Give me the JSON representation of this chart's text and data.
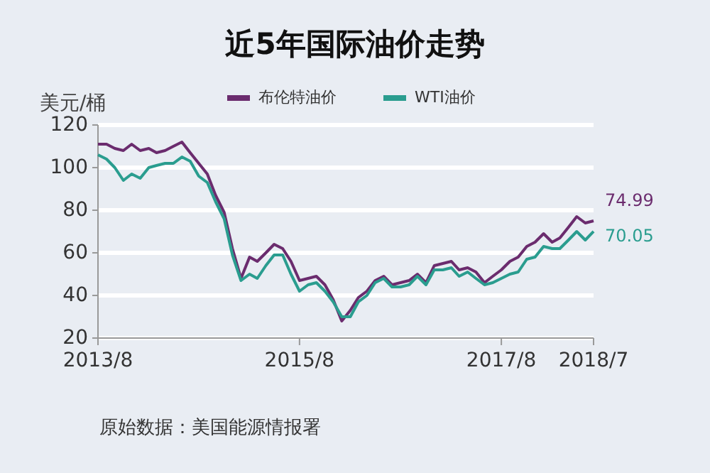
{
  "chart_data": {
    "type": "line",
    "title": "近5年国际油价走势",
    "ylabel": "美元/桶",
    "x": [
      "2013-08",
      "2013-09",
      "2013-10",
      "2013-11",
      "2013-12",
      "2014-01",
      "2014-02",
      "2014-03",
      "2014-04",
      "2014-05",
      "2014-06",
      "2014-07",
      "2014-08",
      "2014-09",
      "2014-10",
      "2014-11",
      "2014-12",
      "2015-01",
      "2015-02",
      "2015-03",
      "2015-04",
      "2015-05",
      "2015-06",
      "2015-07",
      "2015-08",
      "2015-09",
      "2015-10",
      "2015-11",
      "2015-12",
      "2016-01",
      "2016-02",
      "2016-03",
      "2016-04",
      "2016-05",
      "2016-06",
      "2016-07",
      "2016-08",
      "2016-09",
      "2016-10",
      "2016-11",
      "2016-12",
      "2017-01",
      "2017-02",
      "2017-03",
      "2017-04",
      "2017-05",
      "2017-06",
      "2017-07",
      "2017-08",
      "2017-09",
      "2017-10",
      "2017-11",
      "2017-12",
      "2018-01",
      "2018-02",
      "2018-03",
      "2018-04",
      "2018-05",
      "2018-06",
      "2018-07"
    ],
    "series": [
      {
        "name": "布伦特油价",
        "color": "#6b2c6e",
        "values": [
          111,
          111,
          109,
          108,
          111,
          108,
          109,
          107,
          108,
          110,
          112,
          107,
          102,
          97,
          87,
          79,
          62,
          48,
          58,
          56,
          60,
          64,
          62,
          56,
          47,
          48,
          49,
          45,
          38,
          28,
          33,
          39,
          42,
          47,
          49,
          45,
          46,
          47,
          50,
          46,
          54,
          55,
          56,
          52,
          53,
          51,
          46,
          49,
          52,
          56,
          58,
          63,
          65,
          69,
          65,
          67,
          72,
          77,
          74,
          74.99
        ],
        "value_labels": [
          null,
          null,
          null,
          null,
          null,
          null,
          null,
          null,
          null,
          null,
          null,
          null,
          null,
          null,
          null,
          null,
          null,
          null,
          null,
          null,
          null,
          null,
          null,
          null,
          null,
          null,
          null,
          null,
          null,
          null,
          null,
          null,
          null,
          null,
          null,
          null,
          null,
          null,
          null,
          null,
          null,
          null,
          null,
          null,
          null,
          null,
          null,
          null,
          null,
          null,
          null,
          null,
          null,
          null,
          null,
          null,
          null,
          null,
          null,
          "74.99"
        ]
      },
      {
        "name": "WTI油价",
        "color": "#2a9d8f",
        "values": [
          106,
          104,
          100,
          94,
          97,
          95,
          100,
          101,
          102,
          102,
          105,
          103,
          96,
          93,
          84,
          76,
          59,
          47,
          50,
          48,
          54,
          59,
          59,
          50,
          42,
          45,
          46,
          42,
          37,
          30,
          30,
          37,
          40,
          46,
          48,
          44,
          44,
          45,
          49,
          45,
          52,
          52,
          53,
          49,
          51,
          48,
          45,
          46,
          48,
          50,
          51,
          57,
          58,
          63,
          62,
          62,
          66,
          70,
          66,
          70.05
        ],
        "value_labels": [
          null,
          null,
          null,
          null,
          null,
          null,
          null,
          null,
          null,
          null,
          null,
          null,
          null,
          null,
          null,
          null,
          null,
          null,
          null,
          null,
          null,
          null,
          null,
          null,
          null,
          null,
          null,
          null,
          null,
          null,
          null,
          null,
          null,
          null,
          null,
          null,
          null,
          null,
          null,
          null,
          null,
          null,
          null,
          null,
          null,
          null,
          null,
          null,
          null,
          null,
          null,
          null,
          null,
          null,
          null,
          null,
          null,
          null,
          null,
          "70.05"
        ]
      }
    ],
    "xlim": [
      "2013-08",
      "2018-07"
    ],
    "xticks": [
      {
        "value": "2013-08",
        "label": "2013/8"
      },
      {
        "value": "2015-08",
        "label": "2015/8"
      },
      {
        "value": "2017-08",
        "label": "2017/8"
      },
      {
        "value": "2018-07",
        "label": "2018/7"
      }
    ],
    "ylim": [
      20,
      120
    ],
    "yticks": [
      20,
      40,
      60,
      80,
      100,
      120
    ],
    "grid": "y",
    "legend": "top",
    "marker": "none",
    "line_style": "solid",
    "annotations": [
      "原始数据：美国能源情报署"
    ]
  }
}
